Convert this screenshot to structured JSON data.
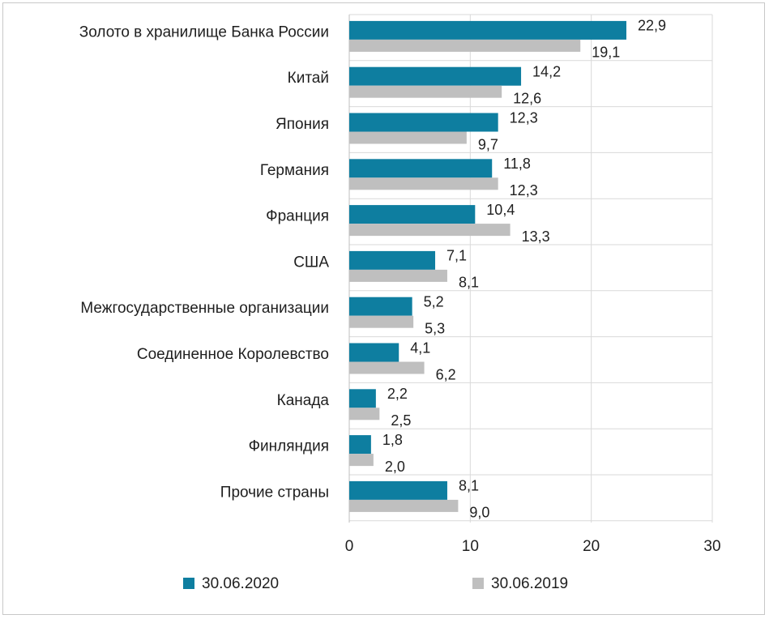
{
  "chart_data": {
    "type": "bar",
    "orientation": "horizontal",
    "categories": [
      "Золото в хранилище Банка России",
      "Китай",
      "Япония",
      "Германия",
      "Франция",
      "США",
      "Межгосударственные организации",
      "Соединенное Королевство",
      "Канада",
      "Финляндия",
      "Прочие страны"
    ],
    "series": [
      {
        "name": "30.06.2020",
        "color": "#0e7ea0",
        "values": [
          22.9,
          14.2,
          12.3,
          11.8,
          10.4,
          7.1,
          5.2,
          4.1,
          2.2,
          1.8,
          8.1
        ],
        "value_labels": [
          "22,9",
          "14,2",
          "12,3",
          "11,8",
          "10,4",
          "7,1",
          "5,2",
          "4,1",
          "2,2",
          "1,8",
          "8,1"
        ]
      },
      {
        "name": "30.06.2019",
        "color": "#bfbfbf",
        "values": [
          19.1,
          12.6,
          9.7,
          12.3,
          13.3,
          8.1,
          5.3,
          6.2,
          2.5,
          2.0,
          9.0
        ],
        "value_labels": [
          "19,1",
          "12,6",
          "9,7",
          "12,3",
          "13,3",
          "8,1",
          "5,3",
          "6,2",
          "2,5",
          "2,0",
          "9,0"
        ]
      }
    ],
    "xlim": [
      0,
      30
    ],
    "x_ticks": [
      "0",
      "10",
      "20",
      "30"
    ],
    "grid": "vertical",
    "legend": "bottom"
  }
}
